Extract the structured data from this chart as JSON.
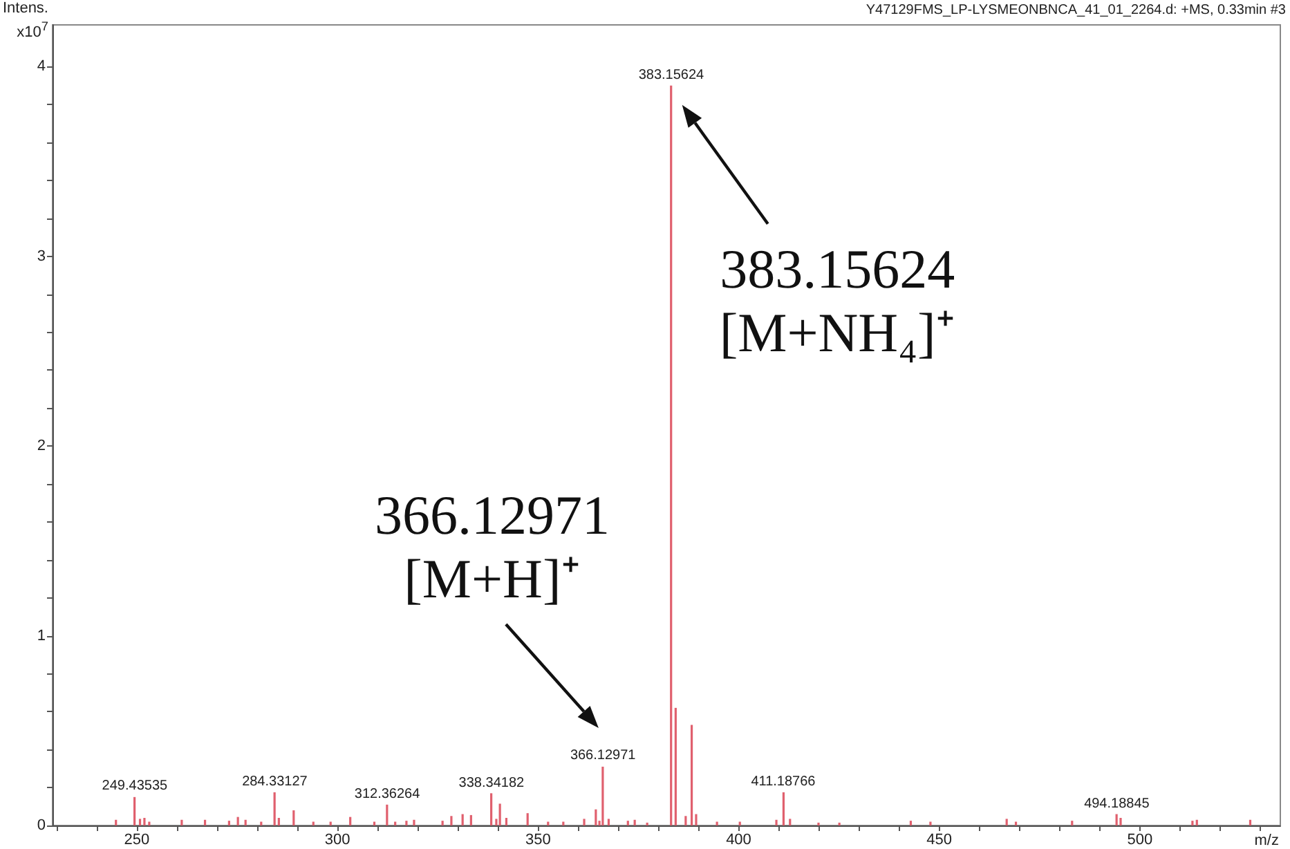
{
  "chart_data": {
    "type": "bar",
    "xlabel": "m/z",
    "ylabel": "Intens.\nx10$^{7}$",
    "xlim": [
      229,
      535
    ],
    "xticks": [
      {
        "value": 230,
        "label": null
      },
      {
        "value": 240,
        "label": null
      },
      250,
      {
        "value": 260,
        "label": null
      },
      {
        "value": 270,
        "label": null
      },
      {
        "value": 280,
        "label": null
      },
      {
        "value": 290,
        "label": null
      },
      300,
      {
        "value": 310,
        "label": null
      },
      {
        "value": 320,
        "label": null
      },
      {
        "value": 330,
        "label": null
      },
      {
        "value": 340,
        "label": null
      },
      350,
      {
        "value": 360,
        "label": null
      },
      {
        "value": 370,
        "label": null
      },
      {
        "value": 380,
        "label": null
      },
      {
        "value": 390,
        "label": null
      },
      400,
      {
        "value": 410,
        "label": null
      },
      {
        "value": 420,
        "label": null
      },
      {
        "value": 430,
        "label": null
      },
      {
        "value": 440,
        "label": null
      },
      450,
      {
        "value": 460,
        "label": null
      },
      {
        "value": 470,
        "label": null
      },
      {
        "value": 480,
        "label": null
      },
      {
        "value": 490,
        "label": null
      },
      500,
      {
        "value": 510,
        "label": null
      },
      {
        "value": 520,
        "label": null
      },
      {
        "value": 530,
        "label": null
      }
    ],
    "ylim": [
      0,
      4.22
    ],
    "yticks": [
      0,
      {
        "value": 0.2,
        "label": null
      },
      {
        "value": 0.4,
        "label": null
      },
      {
        "value": 0.6,
        "label": null
      },
      {
        "value": 0.8,
        "label": null
      },
      1,
      {
        "value": 1.2,
        "label": null
      },
      {
        "value": 1.4,
        "label": null
      },
      {
        "value": 1.6,
        "label": null
      },
      {
        "value": 1.8,
        "label": null
      },
      2,
      {
        "value": 2.2,
        "label": null
      },
      {
        "value": 2.4,
        "label": null
      },
      {
        "value": 2.6,
        "label": null
      },
      {
        "value": 2.8,
        "label": null
      },
      3,
      {
        "value": 3.2,
        "label": null
      },
      {
        "value": 3.4,
        "label": null
      },
      {
        "value": 3.6,
        "label": null
      },
      {
        "value": 3.8,
        "label": null
      },
      4
    ],
    "grid": false,
    "series": [
      {
        "color": "#e0606e",
        "x": [
          244.8,
          249.43535,
          250.8,
          251.9,
          253.1,
          261.2,
          267.0,
          273.0,
          275.2,
          277.1,
          281.0,
          284.33127,
          285.4,
          289.1,
          294.0,
          298.3,
          303.2,
          309.2,
          312.36264,
          314.4,
          317.2,
          319.1,
          326.2,
          328.4,
          331.2,
          333.3,
          338.34182,
          339.6,
          340.5,
          342.1,
          347.4,
          352.5,
          356.3,
          361.5,
          364.4,
          365.3,
          366.12971,
          367.6,
          372.4,
          374.1,
          377.2,
          383.15624,
          384.3,
          386.8,
          388.3,
          389.4,
          394.6,
          400.3,
          409.4,
          411.18766,
          412.8,
          419.9,
          425.1,
          442.9,
          447.8,
          466.8,
          469.1,
          483.1,
          494.18845,
          495.2,
          513.1,
          514.2,
          527.5
        ],
        "values": [
          0.03,
          0.15,
          0.035,
          0.04,
          0.02,
          0.03,
          0.03,
          0.025,
          0.045,
          0.03,
          0.02,
          0.175,
          0.04,
          0.08,
          0.02,
          0.02,
          0.045,
          0.02,
          0.11,
          0.02,
          0.025,
          0.03,
          0.025,
          0.05,
          0.06,
          0.055,
          0.17,
          0.035,
          0.115,
          0.04,
          0.065,
          0.02,
          0.02,
          0.035,
          0.085,
          0.025,
          0.31,
          0.035,
          0.025,
          0.03,
          0.015,
          3.9,
          0.62,
          0.05,
          0.53,
          0.06,
          0.02,
          0.02,
          0.03,
          0.175,
          0.035,
          0.015,
          0.015,
          0.025,
          0.02,
          0.035,
          0.02,
          0.025,
          0.06,
          0.04,
          0.025,
          0.03,
          0.03
        ]
      }
    ],
    "annotations": [
      "Y47129FMS_LP-LYSMEONBNCA_41_01_2264.d: +MS, 0.33min #3",
      {
        "text": "249.43535",
        "x": 249.43535,
        "y": 0.15
      },
      {
        "text": "284.33127",
        "x": 284.33127,
        "y": 0.175
      },
      {
        "text": "312.36264",
        "x": 312.36264,
        "y": 0.11
      },
      {
        "text": "338.34182",
        "x": 338.34182,
        "y": 0.17
      },
      {
        "text": "366.12971",
        "x": 366.12971,
        "y": 0.31
      },
      {
        "text": "383.15624",
        "x": 383.15624,
        "y": 3.9
      },
      {
        "text": "411.18766",
        "x": 411.18766,
        "y": 0.175
      },
      {
        "text": "494.18845",
        "x": 494.18845,
        "y": 0.06
      },
      {
        "text": "383.15624\n[M+NH₄]⁺",
        "x": 383.15624,
        "y": 3.9
      },
      {
        "text": "366.12971\n[M+H]⁺",
        "x": 366.12971,
        "y": 0.31
      }
    ]
  }
}
